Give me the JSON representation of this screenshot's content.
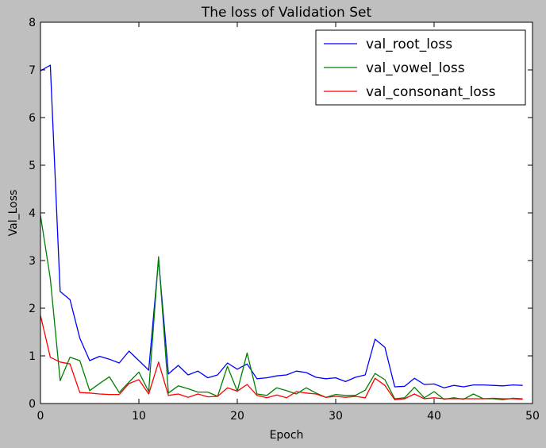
{
  "chart_data": {
    "type": "line",
    "title": "The loss of Validation Set",
    "xlabel": "Epoch",
    "ylabel": "Val_Loss",
    "xlim": [
      0,
      50
    ],
    "ylim": [
      0,
      8
    ],
    "xticks": [
      0,
      10,
      20,
      30,
      40,
      50
    ],
    "yticks": [
      0,
      1,
      2,
      3,
      4,
      5,
      6,
      7,
      8
    ],
    "grid": false,
    "legend_position": "top-right",
    "x": [
      0,
      1,
      2,
      3,
      4,
      5,
      6,
      7,
      8,
      9,
      10,
      11,
      12,
      13,
      14,
      15,
      16,
      17,
      18,
      19,
      20,
      21,
      22,
      23,
      24,
      25,
      26,
      27,
      28,
      29,
      30,
      31,
      32,
      33,
      34,
      35,
      36,
      37,
      38,
      39,
      40,
      41,
      42,
      43,
      44,
      45,
      46,
      47,
      48,
      49
    ],
    "series": [
      {
        "name": "val_root_loss",
        "color": "#0000ff",
        "values": [
          6.98,
          7.1,
          2.35,
          2.18,
          1.37,
          0.9,
          0.99,
          0.93,
          0.85,
          1.1,
          0.9,
          0.7,
          3.02,
          0.62,
          0.8,
          0.6,
          0.68,
          0.54,
          0.6,
          0.85,
          0.72,
          0.83,
          0.52,
          0.54,
          0.58,
          0.6,
          0.68,
          0.65,
          0.55,
          0.52,
          0.54,
          0.46,
          0.55,
          0.6,
          1.35,
          1.18,
          0.35,
          0.36,
          0.53,
          0.4,
          0.41,
          0.33,
          0.38,
          0.35,
          0.39,
          0.39,
          0.38,
          0.37,
          0.39,
          0.38
        ]
      },
      {
        "name": "val_vowel_loss",
        "color": "#008000",
        "values": [
          3.95,
          2.62,
          0.48,
          0.97,
          0.9,
          0.27,
          0.42,
          0.56,
          0.23,
          0.45,
          0.66,
          0.25,
          3.08,
          0.22,
          0.37,
          0.31,
          0.24,
          0.24,
          0.15,
          0.78,
          0.26,
          1.06,
          0.2,
          0.17,
          0.33,
          0.27,
          0.2,
          0.33,
          0.22,
          0.13,
          0.19,
          0.17,
          0.17,
          0.28,
          0.63,
          0.5,
          0.1,
          0.12,
          0.34,
          0.12,
          0.25,
          0.09,
          0.12,
          0.09,
          0.2,
          0.1,
          0.1,
          0.08,
          0.11,
          0.1
        ]
      },
      {
        "name": "val_consonant_loss",
        "color": "#ff0000",
        "values": [
          1.85,
          0.97,
          0.87,
          0.83,
          0.23,
          0.22,
          0.2,
          0.19,
          0.19,
          0.42,
          0.5,
          0.2,
          0.87,
          0.17,
          0.2,
          0.13,
          0.2,
          0.14,
          0.15,
          0.33,
          0.26,
          0.4,
          0.17,
          0.12,
          0.18,
          0.12,
          0.25,
          0.22,
          0.2,
          0.13,
          0.15,
          0.13,
          0.15,
          0.12,
          0.53,
          0.38,
          0.08,
          0.1,
          0.2,
          0.1,
          0.12,
          0.1,
          0.1,
          0.1,
          0.1,
          0.1,
          0.11,
          0.1,
          0.1,
          0.09
        ]
      }
    ]
  }
}
